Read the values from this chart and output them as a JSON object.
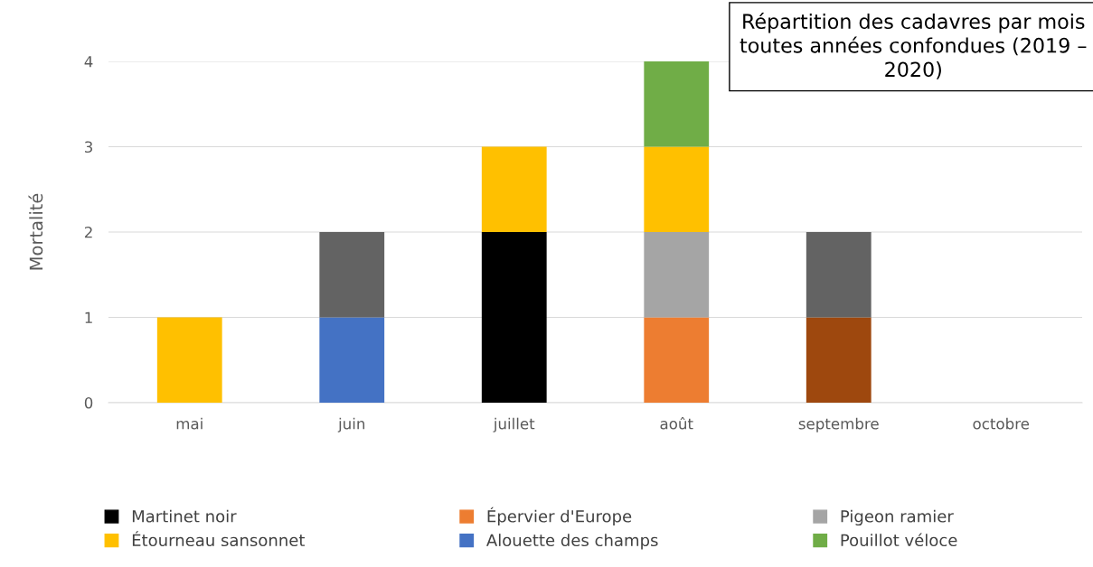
{
  "chart_data": {
    "type": "bar",
    "stacked": true,
    "title": "Répartition des cadavres par mois toutes années confondues (2019 – 2020)",
    "ylabel": "Mortalité",
    "categories": [
      "mai",
      "juin",
      "juillet",
      "août",
      "septembre",
      "octobre"
    ],
    "series": [
      {
        "name": "Martinet noir",
        "color": "#000000",
        "values": [
          null,
          null,
          2,
          null,
          null,
          null
        ]
      },
      {
        "name": "Épervier d'Europe",
        "color": "#ed7d31",
        "values": [
          null,
          null,
          null,
          1,
          null,
          null
        ]
      },
      {
        "name": "Pigeon ramier",
        "color": "#a5a5a5",
        "values": [
          null,
          null,
          null,
          1,
          null,
          null
        ]
      },
      {
        "name": "Étourneau sansonnet",
        "color": "#ffc000",
        "values": [
          1,
          null,
          1,
          1,
          null,
          null
        ]
      },
      {
        "name": "Alouette des champs",
        "color": "#4472c4",
        "values": [
          null,
          1,
          null,
          null,
          null,
          null
        ]
      },
      {
        "name": "Pouillot véloce",
        "color": "#70ad47",
        "values": [
          null,
          null,
          null,
          1,
          null,
          null
        ]
      },
      {
        "color": "#9e480e",
        "values": [
          null,
          null,
          null,
          null,
          1,
          null
        ]
      },
      {
        "color": "#636363",
        "values": [
          null,
          1,
          null,
          null,
          1,
          null
        ]
      }
    ],
    "ylim": [
      0,
      4
    ],
    "yticks": [
      0,
      1,
      2,
      3,
      4
    ],
    "grid": "y",
    "legend": "bottom"
  }
}
